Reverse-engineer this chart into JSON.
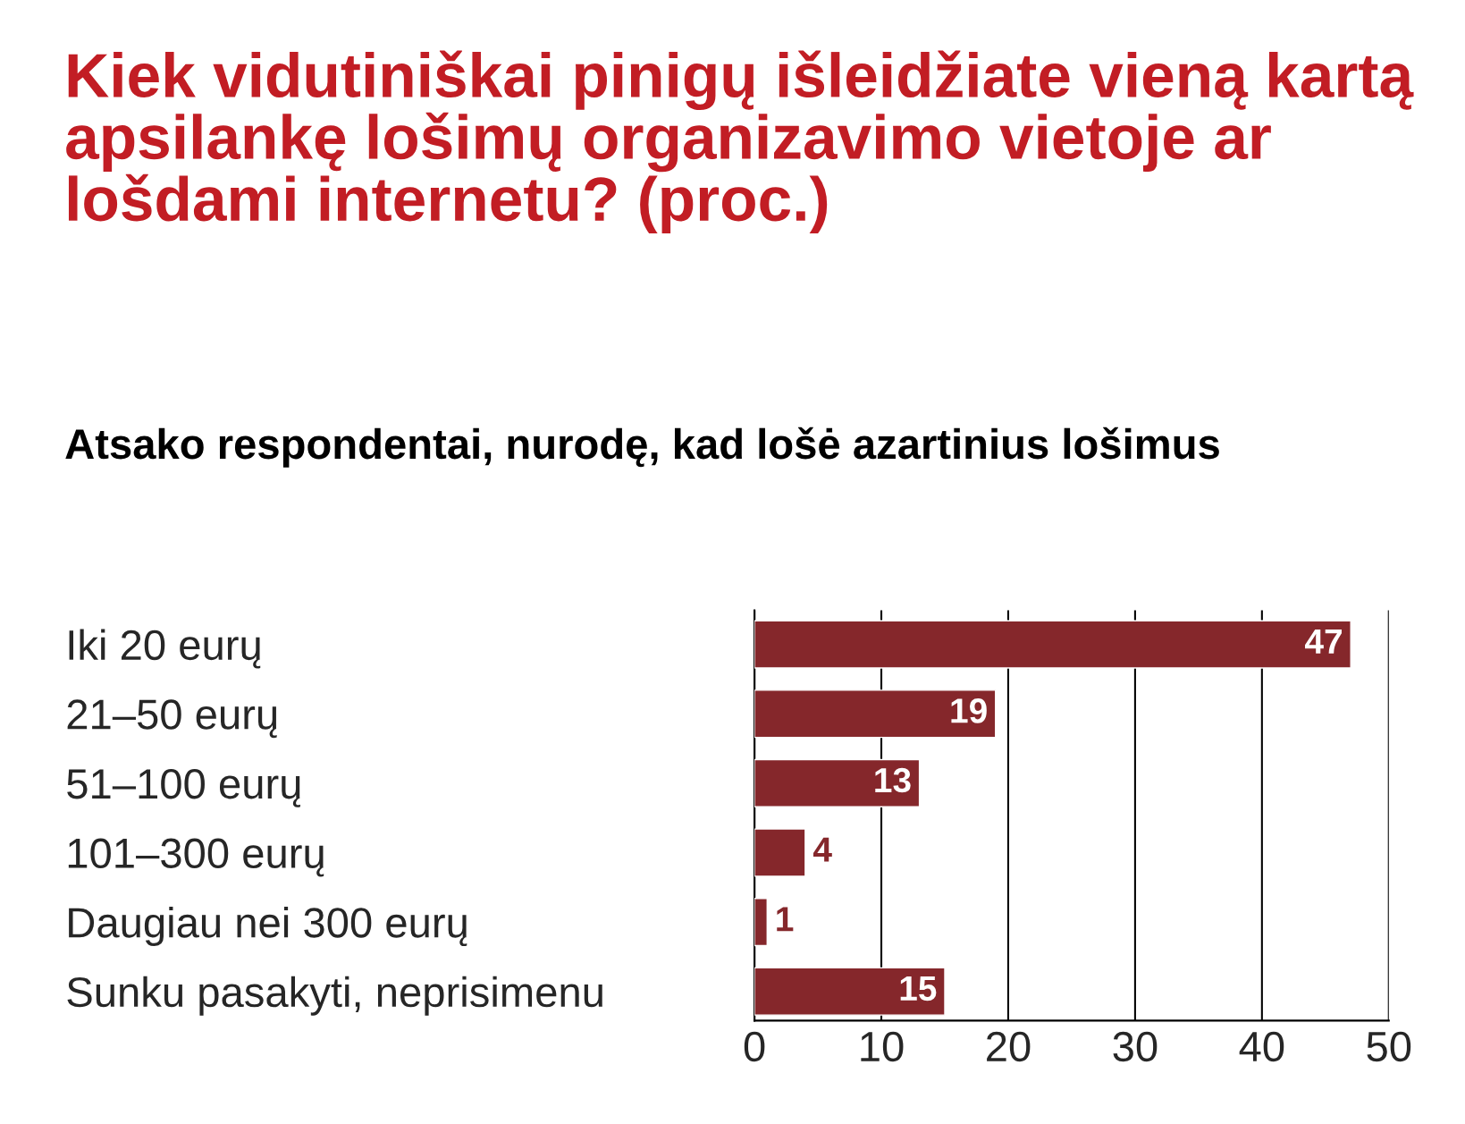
{
  "chart_data": {
    "type": "bar",
    "orientation": "horizontal",
    "title": "Kiek vidutiniškai pinigų išleidžiate vieną kartą apsilankę lošimų organizavimo vietoje ar lošdami internetu? (proc.)",
    "subtitle": "Atsako respondentai, nurodę, kad lošė azartinius lošimus",
    "categories": [
      "Iki 20 eurų",
      "21–50 eurų",
      "51–100 eurų",
      "101–300 eurų",
      "Daugiau nei 300 eurų",
      "Sunku pasakyti, neprisimenu"
    ],
    "values": [
      47,
      19,
      13,
      4,
      1,
      15
    ],
    "color": "#85272b",
    "xlim": [
      0,
      50
    ],
    "xticks": [
      0,
      10,
      20,
      30,
      40,
      50
    ],
    "grid": "x",
    "data_labels": true,
    "legend": false
  }
}
